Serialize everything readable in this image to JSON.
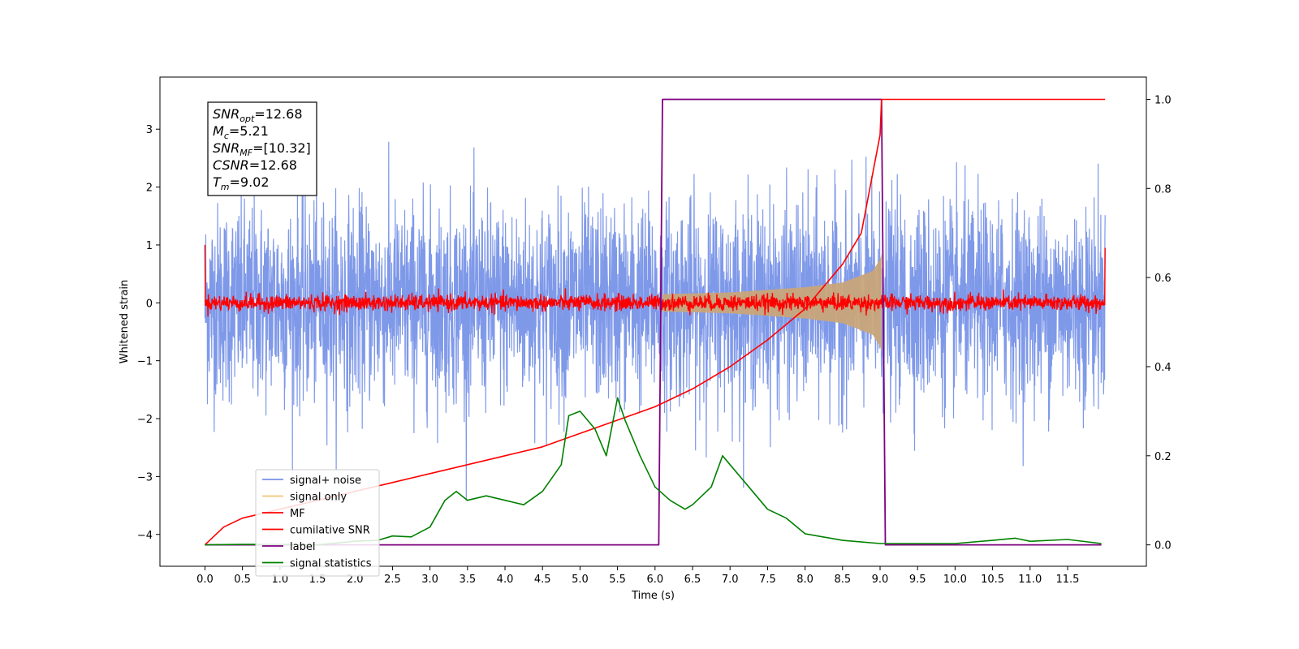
{
  "chart_data": {
    "type": "line",
    "title": "",
    "xlabel": "Time (s)",
    "ylabel": "Whitened strain",
    "y2label": "",
    "xlim": [
      -0.6,
      12.55
    ],
    "ylim": [
      -4.55,
      3.9
    ],
    "y2lim": [
      -0.048,
      1.05
    ],
    "x_ticks": [
      0.0,
      0.5,
      1.0,
      1.5,
      2.0,
      2.5,
      3.0,
      3.5,
      4.0,
      4.5,
      5.0,
      5.5,
      6.0,
      6.5,
      7.0,
      7.5,
      8.0,
      8.5,
      9.0,
      9.5,
      10.0,
      10.5,
      11.0,
      11.5
    ],
    "x_tick_labels": [
      "0.0",
      "0.5",
      "1.0",
      "1.5",
      "2.0",
      "2.5",
      "3.0",
      "3.5",
      "4.0",
      "4.5",
      "5.0",
      "5.5",
      "6.0",
      "6.5",
      "7.0",
      "7.5",
      "8.0",
      "8.5",
      "9.0",
      "9.5",
      "10.0",
      "10.5",
      "11.0",
      "11.5"
    ],
    "y_ticks": [
      3,
      2,
      1,
      0,
      -1,
      -2,
      -3,
      -4
    ],
    "y_tick_labels": [
      "3",
      "2",
      "1",
      "0",
      "−1",
      "−2",
      "−3",
      "−4"
    ],
    "y2_ticks": [
      1.0,
      0.8,
      0.6,
      0.4,
      0.2,
      0.0
    ],
    "y2_tick_labels": [
      "1.0",
      "0.8",
      "0.6",
      "0.4",
      "0.2",
      "0.0"
    ],
    "grid": false,
    "legend_position": "lower-left",
    "series": [
      {
        "name": "signal+ noise",
        "axis": "left",
        "color": "#7893e8",
        "description_points": "dense noise, amplitude roughly ±2.3, peaks to about ±3.5",
        "x_range": [
          0.0,
          12.0
        ],
        "noise_sigma": 0.85
      },
      {
        "name": "signal only",
        "axis": "left",
        "color": "#f5c57a",
        "x_range": [
          6.1,
          9.02
        ],
        "envelope": [
          [
            6.1,
            0.15
          ],
          [
            7.0,
            0.18
          ],
          [
            8.0,
            0.27
          ],
          [
            8.5,
            0.35
          ],
          [
            8.9,
            0.55
          ],
          [
            9.0,
            0.75
          ],
          [
            9.02,
            0.85
          ]
        ]
      },
      {
        "name": "MF",
        "axis": "left",
        "color": "#ff0000",
        "x_range": [
          0.0,
          12.0
        ],
        "description_points": "noise about 0 with amplitude ~0.1, edge spikes to 1.0 at 0.0 and 12.0",
        "edge_values": [
          1.0,
          0.95
        ]
      },
      {
        "name": "cumilative SNR",
        "axis": "right",
        "color": "#ff0000",
        "points": [
          [
            0.0,
            0.0
          ],
          [
            0.25,
            0.04
          ],
          [
            0.5,
            0.06
          ],
          [
            1.0,
            0.08
          ],
          [
            1.5,
            0.1
          ],
          [
            2.0,
            0.12
          ],
          [
            2.5,
            0.14
          ],
          [
            3.0,
            0.16
          ],
          [
            3.5,
            0.18
          ],
          [
            4.0,
            0.2
          ],
          [
            4.5,
            0.22
          ],
          [
            5.0,
            0.25
          ],
          [
            5.5,
            0.28
          ],
          [
            6.0,
            0.31
          ],
          [
            6.5,
            0.35
          ],
          [
            7.0,
            0.4
          ],
          [
            7.5,
            0.46
          ],
          [
            8.0,
            0.53
          ],
          [
            8.5,
            0.63
          ],
          [
            8.75,
            0.7
          ],
          [
            9.0,
            0.92
          ],
          [
            9.02,
            1.0
          ],
          [
            9.1,
            1.0
          ],
          [
            12.0,
            1.0
          ]
        ]
      },
      {
        "name": "label",
        "axis": "right",
        "color": "#800080",
        "points": [
          [
            0.0,
            0.0
          ],
          [
            6.05,
            0.0
          ],
          [
            6.1,
            1.0
          ],
          [
            9.02,
            1.0
          ],
          [
            9.07,
            0.0
          ],
          [
            11.95,
            0.0
          ]
        ]
      },
      {
        "name": "signal statistics",
        "axis": "right",
        "color": "#008000",
        "points": [
          [
            0.0,
            0.0
          ],
          [
            0.5,
            0.001
          ],
          [
            1.0,
            0.001
          ],
          [
            1.5,
            0.0
          ],
          [
            2.0,
            0.008
          ],
          [
            2.3,
            0.01
          ],
          [
            2.5,
            0.02
          ],
          [
            2.75,
            0.018
          ],
          [
            3.0,
            0.04
          ],
          [
            3.2,
            0.1
          ],
          [
            3.35,
            0.12
          ],
          [
            3.5,
            0.1
          ],
          [
            3.75,
            0.11
          ],
          [
            4.0,
            0.1
          ],
          [
            4.25,
            0.09
          ],
          [
            4.5,
            0.12
          ],
          [
            4.75,
            0.18
          ],
          [
            4.85,
            0.29
          ],
          [
            5.0,
            0.3
          ],
          [
            5.2,
            0.26
          ],
          [
            5.35,
            0.2
          ],
          [
            5.5,
            0.33
          ],
          [
            5.6,
            0.28
          ],
          [
            5.8,
            0.2
          ],
          [
            6.0,
            0.13
          ],
          [
            6.2,
            0.1
          ],
          [
            6.4,
            0.08
          ],
          [
            6.5,
            0.09
          ],
          [
            6.75,
            0.13
          ],
          [
            6.9,
            0.2
          ],
          [
            7.0,
            0.18
          ],
          [
            7.25,
            0.13
          ],
          [
            7.5,
            0.08
          ],
          [
            7.75,
            0.06
          ],
          [
            8.0,
            0.025
          ],
          [
            8.5,
            0.01
          ],
          [
            9.0,
            0.003
          ],
          [
            9.5,
            0.003
          ],
          [
            10.0,
            0.003
          ],
          [
            10.5,
            0.01
          ],
          [
            10.8,
            0.015
          ],
          [
            11.0,
            0.008
          ],
          [
            11.5,
            0.012
          ],
          [
            11.95,
            0.003
          ]
        ]
      }
    ],
    "annotation": {
      "lines": [
        {
          "main": "SNR",
          "sub": "opt",
          "value": "=12.68"
        },
        {
          "main": "M",
          "sub": "c",
          "value": "=5.21"
        },
        {
          "main": "SNR",
          "sub": "MF",
          "value": "=[10.32]"
        },
        {
          "main": "CSNR",
          "sub": "",
          "value": "=12.68"
        },
        {
          "main": "T",
          "sub": "m",
          "value": "=9.02"
        }
      ]
    }
  }
}
